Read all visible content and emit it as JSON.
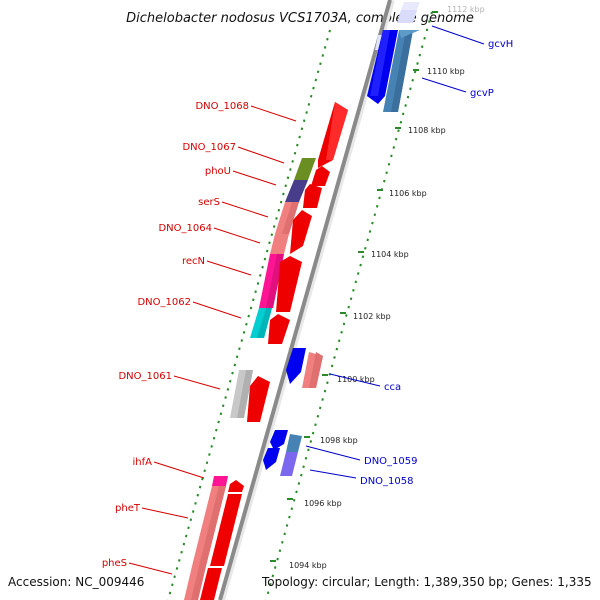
{
  "title": "Dichelobacter nodosus VCS1703A, complete genome",
  "footer": {
    "accession": "Accession: NC_009446",
    "topology": "Topology: circular; Length: 1,389,350 bp; Genes: 1,335"
  },
  "scale": {
    "ticks": [
      {
        "label": "1112 kbp",
        "kbp": 1112,
        "faded": true
      },
      {
        "label": "1110 kbp",
        "kbp": 1110
      },
      {
        "label": "1108 kbp",
        "kbp": 1108
      },
      {
        "label": "1106 kbp",
        "kbp": 1106
      },
      {
        "label": "1104 kbp",
        "kbp": 1104
      },
      {
        "label": "1102 kbp",
        "kbp": 1102
      },
      {
        "label": "1100 kbp",
        "kbp": 1100
      },
      {
        "label": "1098 kbp",
        "kbp": 1098
      },
      {
        "label": "1096 kbp",
        "kbp": 1096
      },
      {
        "label": "1094 kbp",
        "kbp": 1094
      }
    ]
  },
  "colors": {
    "backbone": "#8a8a8a",
    "dots": "#2a8a2a",
    "cds_arrow": "#ee0000",
    "left_label": "#d40000",
    "right_label": "#0000c8"
  },
  "genes": [
    {
      "name": "gcvH",
      "side": "right",
      "color": "#d0d4f8",
      "start_kbp": 1111.1,
      "end_kbp": 1112.3
    },
    {
      "name": "gcvP",
      "side": "right",
      "color": "#4682b4",
      "start_kbp": 1108.6,
      "end_kbp": 1111.3
    },
    {
      "name": "DNO_1068",
      "side": "left",
      "color": "#ee0000",
      "start_kbp": 1106.7,
      "end_kbp": 1108.2
    },
    {
      "name": "DNO_1067",
      "side": "left",
      "color": "#6b8e23",
      "start_kbp": 1106.0,
      "end_kbp": 1106.7
    },
    {
      "name": "phoU",
      "side": "left",
      "color": "#483d8b",
      "start_kbp": 1105.4,
      "end_kbp": 1106.0
    },
    {
      "name": "serS",
      "side": "left",
      "color": "#f08080",
      "start_kbp": 1104.2,
      "end_kbp": 1105.4
    },
    {
      "name": "DNO_1064",
      "side": "left",
      "color": "#f08080",
      "start_kbp": 1103.9,
      "end_kbp": 1104.2
    },
    {
      "name": "recN",
      "side": "left",
      "color": "#ff1493",
      "start_kbp": 1102.6,
      "end_kbp": 1103.9
    },
    {
      "name": "DNO_1062",
      "side": "left",
      "color": "#00ced1",
      "start_kbp": 1101.9,
      "end_kbp": 1102.6
    },
    {
      "name": "cca",
      "side": "right",
      "color": "#f08080",
      "start_kbp": 1100.2,
      "end_kbp": 1101.4
    },
    {
      "name": "DNO_1061",
      "side": "left",
      "color": "#c8c8c8",
      "start_kbp": 1099.4,
      "end_kbp": 1100.5
    },
    {
      "name": "DNO_1059",
      "side": "right",
      "color": "#4682b4",
      "start_kbp": 1097.8,
      "end_kbp": 1098.4
    },
    {
      "name": "DNO_1058",
      "side": "right",
      "color": "#7b68ee",
      "start_kbp": 1097.2,
      "end_kbp": 1097.8
    },
    {
      "name": "ihfA",
      "side": "left",
      "color": "#ff1493",
      "start_kbp": 1096.6,
      "end_kbp": 1096.9
    },
    {
      "name": "pheT",
      "side": "left",
      "color": "#f08080",
      "start_kbp": 1094.4,
      "end_kbp": 1096.6
    },
    {
      "name": "pheS",
      "side": "left",
      "color": "#f08080",
      "start_kbp": 1093.5,
      "end_kbp": 1094.4
    }
  ]
}
